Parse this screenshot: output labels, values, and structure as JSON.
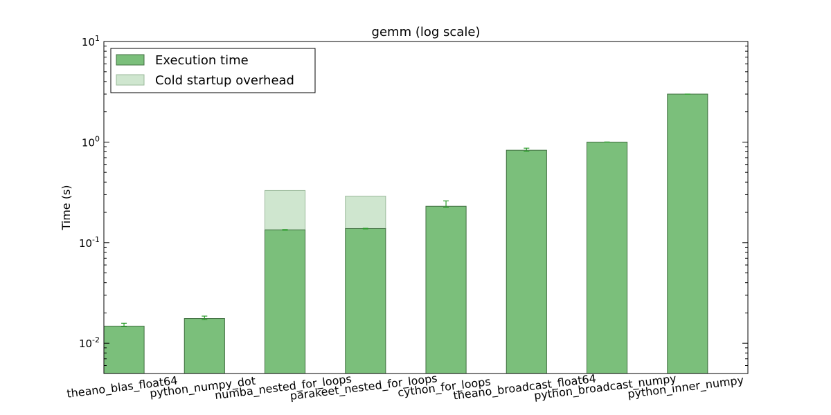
{
  "chart_data": {
    "type": "bar",
    "title": "gemm (log scale)",
    "xlabel": "",
    "ylabel": "Time (s)",
    "yscale": "log",
    "ylim": [
      0.005,
      10
    ],
    "yticks": [
      {
        "value": 0.01,
        "base": "10",
        "exp": "-2"
      },
      {
        "value": 0.1,
        "base": "10",
        "exp": "-1"
      },
      {
        "value": 1,
        "base": "10",
        "exp": "0"
      },
      {
        "value": 10,
        "base": "10",
        "exp": "1"
      }
    ],
    "categories": [
      "theano_blas_float64",
      "python_numpy_dot",
      "numba_nested_for_loops",
      "parakeet_nested_for_loops",
      "cython_for_loops",
      "theano_broadcast_float64",
      "python_broadcast_numpy",
      "python_inner_numpy"
    ],
    "series": [
      {
        "name": "Execution time",
        "values": [
          0.0148,
          0.0176,
          0.134,
          0.138,
          0.23,
          0.83,
          1.0,
          3.0
        ],
        "color": "#7bbf7b"
      },
      {
        "name": "Cold startup overhead",
        "values": [
          0,
          0,
          0.33,
          0.29,
          0,
          0,
          0,
          0
        ],
        "color": "#cfe6cf"
      }
    ],
    "error_bars": [
      {
        "low": 0.0146,
        "high": 0.0158
      },
      {
        "low": 0.0172,
        "high": 0.0186
      },
      {
        "low": 0.133,
        "high": 0.135
      },
      {
        "low": 0.137,
        "high": 0.139
      },
      {
        "low": 0.225,
        "high": 0.26
      },
      {
        "low": 0.81,
        "high": 0.87
      },
      {
        "low": 1.0,
        "high": 1.0
      },
      {
        "low": 3.0,
        "high": 3.0
      }
    ],
    "legend_placement": "top-left",
    "grid": false,
    "x_tick_rotation_deg": -7
  }
}
